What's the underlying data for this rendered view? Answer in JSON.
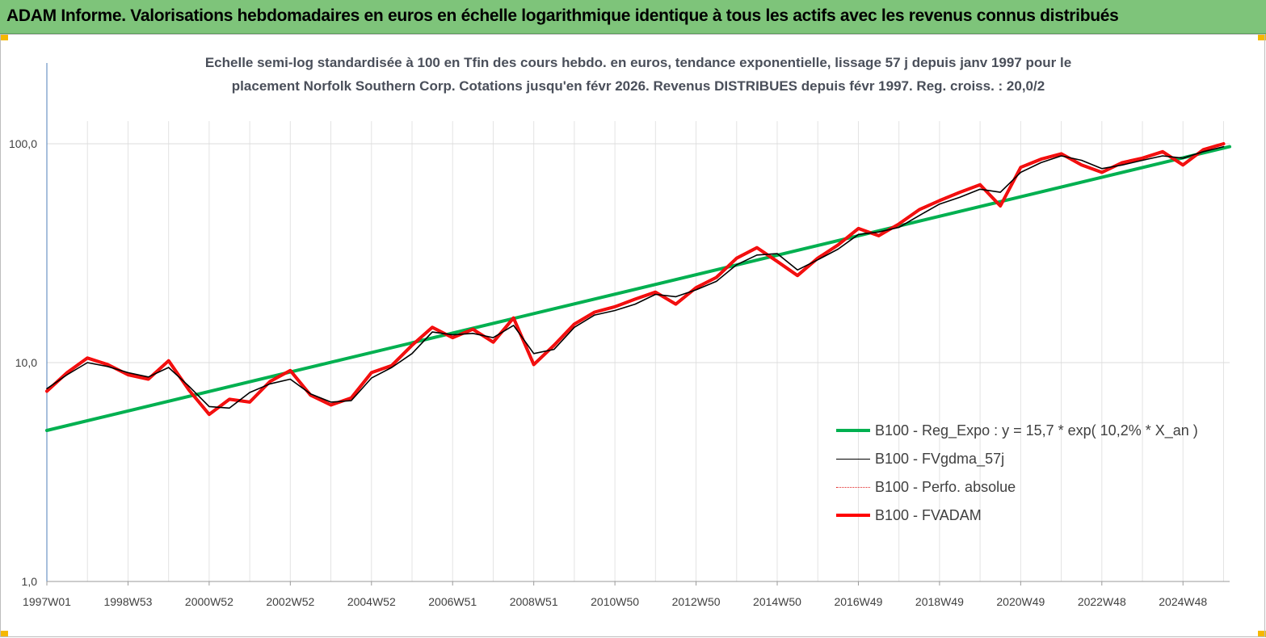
{
  "header": {
    "title": "ADAM Informe. Valorisations hebdomadaires en euros en échelle logarithmique identique à tous les actifs avec les revenus connus distribués"
  },
  "chart_data": {
    "type": "line",
    "title": "",
    "subtitle_line1": "Echelle semi-log standardisée à 100 en Tfin des cours hebdo. en euros, tendance exponentielle, lissage 57 j depuis janv 1997 pour le",
    "subtitle_line2": "placement Norfolk Southern Corp. Cotations jusqu'en févr 2026. Revenus DISTRIBUES depuis févr 1997. Reg. croiss. : 20,0/2",
    "yscale": "log",
    "ylim": [
      1,
      100
    ],
    "y_ticks": [
      {
        "value": 1,
        "label": "1,0"
      },
      {
        "value": 10,
        "label": "10,0"
      },
      {
        "value": 100,
        "label": "100,0"
      }
    ],
    "x_range": [
      1997.0,
      2026.15
    ],
    "x_ticks": [
      {
        "value": 1997.0,
        "label": "1997W01"
      },
      {
        "value": 1999.0,
        "label": "1998W53"
      },
      {
        "value": 2001.0,
        "label": "2000W52"
      },
      {
        "value": 2003.0,
        "label": "2002W52"
      },
      {
        "value": 2005.0,
        "label": "2004W52"
      },
      {
        "value": 2007.0,
        "label": "2006W51"
      },
      {
        "value": 2009.0,
        "label": "2008W51"
      },
      {
        "value": 2011.0,
        "label": "2010W50"
      },
      {
        "value": 2013.0,
        "label": "2012W50"
      },
      {
        "value": 2015.0,
        "label": "2014W50"
      },
      {
        "value": 2017.0,
        "label": "2016W49"
      },
      {
        "value": 2019.0,
        "label": "2018W49"
      },
      {
        "value": 2021.0,
        "label": "2020W49"
      },
      {
        "value": 2023.0,
        "label": "2022W48"
      },
      {
        "value": 2025.0,
        "label": "2024W48"
      }
    ],
    "grid": true,
    "legend_position": "lower-right",
    "series": [
      {
        "name": "B100 - Reg_Expo : y = 15,7 * exp( 10,2% *  X_an )",
        "color": "#00b050",
        "style": "solid-thick",
        "x": [
          1997.0,
          2026.15
        ],
        "y": [
          4.9,
          97.0
        ]
      },
      {
        "name": "B100 - FVgdma_57j",
        "color": "#000000",
        "style": "solid-thin",
        "x": [
          1997.0,
          1997.5,
          1998.0,
          1998.5,
          1999.0,
          1999.5,
          2000.0,
          2000.5,
          2001.0,
          2001.5,
          2002.0,
          2002.5,
          2003.0,
          2003.5,
          2004.0,
          2004.5,
          2005.0,
          2005.5,
          2006.0,
          2006.5,
          2007.0,
          2007.5,
          2008.0,
          2008.5,
          2009.0,
          2009.5,
          2010.0,
          2010.5,
          2011.0,
          2011.5,
          2012.0,
          2012.5,
          2013.0,
          2013.5,
          2014.0,
          2014.5,
          2015.0,
          2015.5,
          2016.0,
          2016.5,
          2017.0,
          2017.5,
          2018.0,
          2018.5,
          2019.0,
          2019.5,
          2020.0,
          2020.5,
          2021.0,
          2021.5,
          2022.0,
          2022.5,
          2023.0,
          2023.5,
          2024.0,
          2024.5,
          2025.0,
          2025.5,
          2026.0
        ],
        "y": [
          7.6,
          8.8,
          10.0,
          9.6,
          9.0,
          8.6,
          9.5,
          7.8,
          6.3,
          6.2,
          7.3,
          8.0,
          8.4,
          7.2,
          6.6,
          6.7,
          8.5,
          9.5,
          11.0,
          13.8,
          13.4,
          13.6,
          13.0,
          14.8,
          11.0,
          11.5,
          14.5,
          16.5,
          17.3,
          18.5,
          20.5,
          20.0,
          21.5,
          23.5,
          28.0,
          31.0,
          31.5,
          26.5,
          29.5,
          33.0,
          38.5,
          39.5,
          41.5,
          47.0,
          53.0,
          57.0,
          62.0,
          60.0,
          74.0,
          82.0,
          88.0,
          84.0,
          77.0,
          80.0,
          84.0,
          88.0,
          86.0,
          92.0,
          97.0
        ]
      },
      {
        "name": "B100 - Perfo. absolue",
        "color": "#e02020",
        "style": "dotted",
        "x": [
          1997.0,
          1997.5,
          1998.0,
          1998.5,
          1999.0,
          1999.5,
          2000.0,
          2000.5,
          2001.0,
          2001.5,
          2002.0,
          2002.5,
          2003.0,
          2003.5,
          2004.0,
          2004.5,
          2005.0,
          2005.5,
          2006.0,
          2006.5,
          2007.0,
          2007.5,
          2008.0,
          2008.5,
          2009.0,
          2009.5,
          2010.0,
          2010.5,
          2011.0,
          2011.5,
          2012.0,
          2012.5,
          2013.0,
          2013.5,
          2014.0,
          2014.5,
          2015.0,
          2015.5,
          2016.0,
          2016.5,
          2017.0,
          2017.5,
          2018.0,
          2018.5,
          2019.0,
          2019.5,
          2020.0,
          2020.5,
          2021.0,
          2021.5,
          2022.0,
          2022.5,
          2023.0,
          2023.5,
          2024.0,
          2024.5,
          2025.0,
          2025.5,
          2026.0
        ],
        "y": [
          7.4,
          9.0,
          10.5,
          9.8,
          8.8,
          8.4,
          10.2,
          7.5,
          5.8,
          6.8,
          6.6,
          8.2,
          9.2,
          7.1,
          6.4,
          6.9,
          9.0,
          9.7,
          12.0,
          14.5,
          13.0,
          14.2,
          12.4,
          16.0,
          9.8,
          12.0,
          15.0,
          17.0,
          18.0,
          19.5,
          21.0,
          18.5,
          22.0,
          24.5,
          30.0,
          33.5,
          29.0,
          25.0,
          30.0,
          34.5,
          41.0,
          38.0,
          43.0,
          50.0,
          55.0,
          60.0,
          65.0,
          52.0,
          78.0,
          85.0,
          90.0,
          80.0,
          74.0,
          82.0,
          86.0,
          92.0,
          80.0,
          94.0,
          100.0
        ]
      },
      {
        "name": "B100 - FVADAM",
        "color": "#ff0000",
        "style": "solid-thick",
        "x": [
          1997.0,
          1997.5,
          1998.0,
          1998.5,
          1999.0,
          1999.5,
          2000.0,
          2000.5,
          2001.0,
          2001.5,
          2002.0,
          2002.5,
          2003.0,
          2003.5,
          2004.0,
          2004.5,
          2005.0,
          2005.5,
          2006.0,
          2006.5,
          2007.0,
          2007.5,
          2008.0,
          2008.5,
          2009.0,
          2009.5,
          2010.0,
          2010.5,
          2011.0,
          2011.5,
          2012.0,
          2012.5,
          2013.0,
          2013.5,
          2014.0,
          2014.5,
          2015.0,
          2015.5,
          2016.0,
          2016.5,
          2017.0,
          2017.5,
          2018.0,
          2018.5,
          2019.0,
          2019.5,
          2020.0,
          2020.5,
          2021.0,
          2021.5,
          2022.0,
          2022.5,
          2023.0,
          2023.5,
          2024.0,
          2024.5,
          2025.0,
          2025.5,
          2026.0
        ],
        "y": [
          7.4,
          9.0,
          10.5,
          9.8,
          8.8,
          8.4,
          10.2,
          7.5,
          5.8,
          6.8,
          6.6,
          8.2,
          9.2,
          7.1,
          6.4,
          6.9,
          9.0,
          9.7,
          12.0,
          14.5,
          13.0,
          14.2,
          12.4,
          16.0,
          9.8,
          12.0,
          15.0,
          17.0,
          18.0,
          19.5,
          21.0,
          18.5,
          22.0,
          24.5,
          30.0,
          33.5,
          29.0,
          25.0,
          30.0,
          34.5,
          41.0,
          38.0,
          43.0,
          50.0,
          55.0,
          60.0,
          65.0,
          52.0,
          78.0,
          85.0,
          90.0,
          80.0,
          74.0,
          82.0,
          86.0,
          92.0,
          80.0,
          94.0,
          100.0
        ]
      }
    ]
  }
}
